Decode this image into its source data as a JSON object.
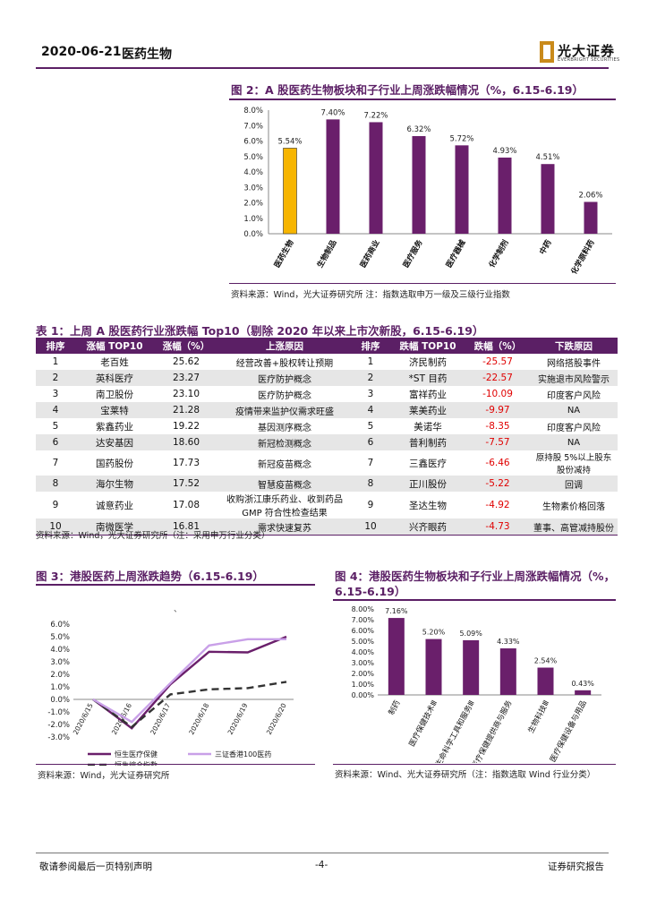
{
  "header": {
    "date": "2020-06-21",
    "title": "医药生物",
    "logo_text": "光大证券",
    "logo_sub": "EVERBRIGHT SECURITIES"
  },
  "fig2": {
    "title": "图 2：A 股医药生物板块和子行业上周涨跌幅情况（%，6.15-6.19）",
    "source": "资料来源：Wind，光大证券研究所     注：指数选取申万一级及三级行业指数",
    "chart_data": {
      "type": "bar",
      "categories": [
        "医药生物",
        "生物制品",
        "医药商业",
        "医疗服务",
        "医疗器械",
        "化学制剂",
        "中药",
        "化学原料药"
      ],
      "values": [
        5.54,
        7.4,
        7.22,
        6.32,
        5.72,
        4.93,
        4.51,
        2.06
      ],
      "data_labels": [
        "5.54%",
        "7.40%",
        "7.22%",
        "6.32%",
        "5.72%",
        "4.93%",
        "4.51%",
        "2.06%"
      ],
      "yticks": [
        "0.0%",
        "1.0%",
        "2.0%",
        "3.0%",
        "4.0%",
        "5.0%",
        "6.0%",
        "7.0%",
        "8.0%"
      ],
      "ylim": [
        0,
        8
      ],
      "colors": {
        "highlight": "#f7b500",
        "bar": "#6a1f6b"
      }
    }
  },
  "table1": {
    "title": "表 1：上周 A 股医药行业涨跌幅 Top10（剔除 2020 年以来上市次新股，6.15-6.19）",
    "headers": [
      "排序",
      "涨幅 TOP10",
      "涨幅（%）",
      "上涨原因",
      "排序",
      "跌幅 TOP10",
      "跌幅（%）",
      "下跌原因"
    ],
    "rows": [
      [
        "1",
        "老百姓",
        "25.62",
        "经营改善+股权转让预期",
        "1",
        "济民制药",
        "-25.57",
        "网络搭股事件"
      ],
      [
        "2",
        "英科医疗",
        "23.27",
        "医疗防护概念",
        "2",
        "*ST 目药",
        "-22.57",
        "实施退市风险警示"
      ],
      [
        "3",
        "南卫股份",
        "23.10",
        "医疗防护概念",
        "3",
        "富祥药业",
        "-10.09",
        "印度客户风险"
      ],
      [
        "4",
        "宝莱特",
        "21.28",
        "疫情带来监护仪需求旺盛",
        "4",
        "莱美药业",
        "-9.97",
        "NA"
      ],
      [
        "5",
        "紫鑫药业",
        "19.22",
        "基因测序概念",
        "5",
        "美诺华",
        "-8.35",
        "印度客户风险"
      ],
      [
        "6",
        "达安基因",
        "18.60",
        "新冠检测概念",
        "6",
        "普利制药",
        "-7.57",
        "NA"
      ],
      [
        "7",
        "国药股份",
        "17.73",
        "新冠疫苗概念",
        "7",
        "三鑫医疗",
        "-6.46",
        "原持股 5%以上股东股份减持"
      ],
      [
        "8",
        "海尔生物",
        "17.52",
        "智慧疫苗概念",
        "8",
        "正川股份",
        "-5.22",
        "回调"
      ],
      [
        "9",
        "诚意药业",
        "17.08",
        "收购浙江康乐药业、收到药品 GMP 符合性检查结果",
        "9",
        "圣达生物",
        "-4.92",
        "生物素价格回落"
      ],
      [
        "10",
        "南微医学",
        "16.81",
        "需求快速复苏",
        "10",
        "兴齐眼药",
        "-4.73",
        "董事、高管减持股份"
      ]
    ],
    "source": "资料来源：Wind，光大证券研究所（注：采用申万行业分类）"
  },
  "fig3": {
    "title": "图 3：港股医药上周涨跌趋势（6.15-6.19）",
    "source": "资料来源：Wind，光大证券研究所",
    "chart_data": {
      "type": "line",
      "x": [
        "2020/6/15",
        "2020/6/16",
        "2020/6/17",
        "2020/6/18",
        "2020/6/19",
        "2020/6/20"
      ],
      "yticks": [
        "-3.0%",
        "-2.0%",
        "-1.0%",
        "0.0%",
        "1.0%",
        "2.0%",
        "3.0%",
        "4.0%",
        "5.0%",
        "6.0%"
      ],
      "ylim": [
        -3,
        6
      ],
      "series": [
        {
          "name": "恒生医疗保健",
          "values": [
            0.0,
            -2.3,
            1.2,
            3.8,
            3.75,
            5.0
          ],
          "color": "#6a1f6b",
          "dash": "solid"
        },
        {
          "name": "恒生综合指数",
          "values": [
            0.0,
            -2.2,
            0.4,
            0.8,
            0.9,
            1.4
          ],
          "color": "#333333",
          "dash": "dashed"
        },
        {
          "name": "三证香港 100 医药",
          "values": [
            0.0,
            -1.8,
            1.3,
            4.3,
            4.8,
            4.8
          ],
          "color": "#c9a0e8",
          "dash": "solid"
        }
      ],
      "legend_texts": [
        "恒生医疗保健",
        "三证香港100医药",
        "恒生综合指数"
      ],
      "legend_position": "bottom"
    }
  },
  "fig4": {
    "title_line1": "图 4：港股医药生物板块和子行业上周涨跌幅情况（%，",
    "title_line2": "6.15-6.19）",
    "source": "资料来源：Wind、光大证券研究所（注：指数选取 Wind 行业分类）",
    "chart_data": {
      "type": "bar",
      "categories": [
        "制药",
        "医疗保健技术Ⅲ",
        "生命科学工具和服务Ⅲ",
        "医疗保健提供商与服务",
        "生物科技Ⅲ",
        "医疗保健设备与用品"
      ],
      "values": [
        7.16,
        5.2,
        5.09,
        4.33,
        2.54,
        0.43
      ],
      "data_labels": [
        "7.16%",
        "5.20%",
        "5.09%",
        "4.33%",
        "2.54%",
        "0.43%"
      ],
      "yticks": [
        "0.00%",
        "1.00%",
        "2.00%",
        "3.00%",
        "4.00%",
        "5.00%",
        "6.00%",
        "7.00%",
        "8.00%"
      ],
      "ylim": [
        0,
        8
      ],
      "colors": {
        "bar": "#6a1f6b"
      }
    }
  },
  "footer": {
    "left": "敬请参阅最后一页特别声明",
    "center": "-4-",
    "right": "证券研究报告"
  }
}
